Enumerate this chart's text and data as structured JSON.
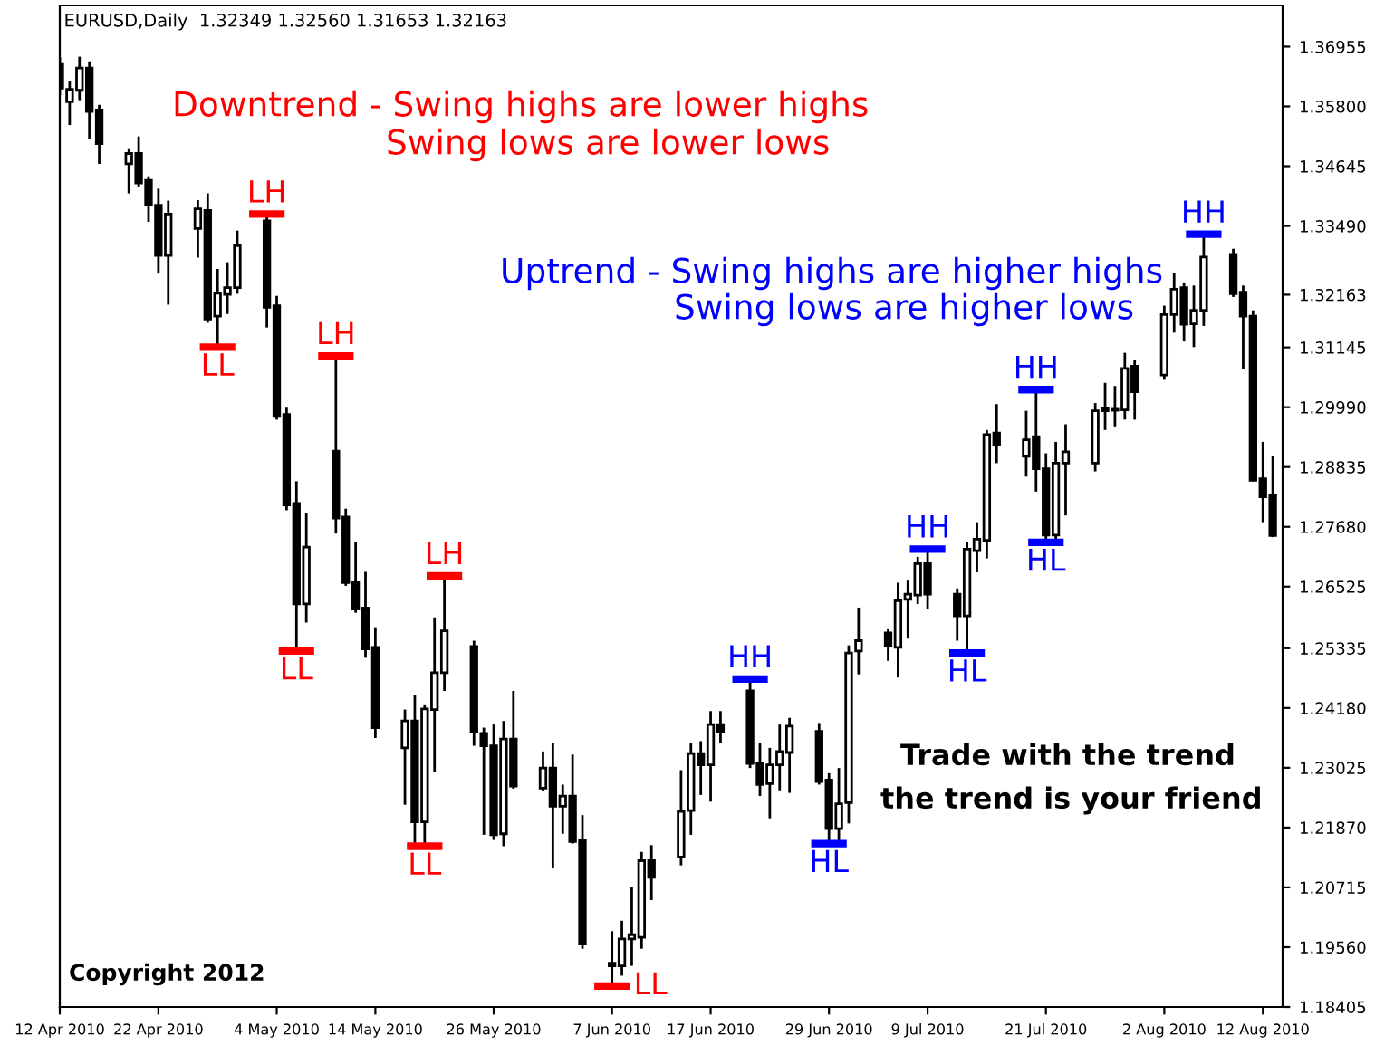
{
  "chart_data": {
    "type": "candlestick",
    "title": "EURUSD,Daily  1.32349 1.32560 1.31653 1.32163",
    "color": "#000000",
    "x": [
      "2010-04-12",
      "2010-04-13",
      "2010-04-14",
      "2010-04-15",
      "2010-04-16",
      "2010-04-19",
      "2010-04-20",
      "2010-04-21",
      "2010-04-22",
      "2010-04-23",
      "2010-04-26",
      "2010-04-27",
      "2010-04-28",
      "2010-04-29",
      "2010-04-30",
      "2010-05-03",
      "2010-05-04",
      "2010-05-05",
      "2010-05-06",
      "2010-05-07",
      "2010-05-10",
      "2010-05-11",
      "2010-05-12",
      "2010-05-13",
      "2010-05-14",
      "2010-05-17",
      "2010-05-18",
      "2010-05-19",
      "2010-05-20",
      "2010-05-21",
      "2010-05-24",
      "2010-05-25",
      "2010-05-26",
      "2010-05-27",
      "2010-05-28",
      "2010-05-31",
      "2010-06-01",
      "2010-06-02",
      "2010-06-03",
      "2010-06-04",
      "2010-06-07",
      "2010-06-08",
      "2010-06-09",
      "2010-06-10",
      "2010-06-11",
      "2010-06-14",
      "2010-06-15",
      "2010-06-16",
      "2010-06-17",
      "2010-06-18",
      "2010-06-21",
      "2010-06-22",
      "2010-06-23",
      "2010-06-24",
      "2010-06-25",
      "2010-06-28",
      "2010-06-29",
      "2010-06-30",
      "2010-07-01",
      "2010-07-02",
      "2010-07-05",
      "2010-07-06",
      "2010-07-07",
      "2010-07-08",
      "2010-07-09",
      "2010-07-12",
      "2010-07-13",
      "2010-07-14",
      "2010-07-15",
      "2010-07-16",
      "2010-07-19",
      "2010-07-20",
      "2010-07-21",
      "2010-07-22",
      "2010-07-23",
      "2010-07-26",
      "2010-07-27",
      "2010-07-28",
      "2010-07-29",
      "2010-07-30",
      "2010-08-02",
      "2010-08-03",
      "2010-08-04",
      "2010-08-05",
      "2010-08-06",
      "2010-08-09",
      "2010-08-10",
      "2010-08-11",
      "2010-08-12",
      "2010-08-13"
    ],
    "ohlc": [
      [
        1.3661,
        1.3674,
        1.3602,
        1.3615
      ],
      [
        1.3589,
        1.3628,
        1.3544,
        1.3613
      ],
      [
        1.3611,
        1.3676,
        1.3592,
        1.3654
      ],
      [
        1.3654,
        1.3667,
        1.3518,
        1.357
      ],
      [
        1.3573,
        1.3583,
        1.3469,
        1.3508
      ],
      [
        1.3469,
        1.3499,
        1.3412,
        1.3489
      ],
      [
        1.3489,
        1.3522,
        1.3425,
        1.3432
      ],
      [
        1.3437,
        1.3445,
        1.3357,
        1.3389
      ],
      [
        1.3389,
        1.3421,
        1.3257,
        1.3292
      ],
      [
        1.3292,
        1.3398,
        1.3197,
        1.3372
      ],
      [
        1.3344,
        1.3399,
        1.3288,
        1.3382
      ],
      [
        1.3379,
        1.3412,
        1.3162,
        1.3169
      ],
      [
        1.3175,
        1.3266,
        1.3115,
        1.3219
      ],
      [
        1.3217,
        1.3279,
        1.3179,
        1.323
      ],
      [
        1.323,
        1.334,
        1.3218,
        1.3311
      ],
      [
        1.3359,
        1.3372,
        1.3153,
        1.3192
      ],
      [
        1.3195,
        1.3214,
        1.2975,
        1.2981
      ],
      [
        1.2985,
        1.2998,
        1.28,
        1.281
      ],
      [
        1.2813,
        1.2856,
        1.2528,
        1.2619
      ],
      [
        1.2619,
        1.2794,
        1.2583,
        1.2729
      ],
      [
        1.2914,
        1.3098,
        1.2755,
        1.2785
      ],
      [
        1.2787,
        1.2803,
        1.2654,
        1.266
      ],
      [
        1.266,
        1.2738,
        1.2602,
        1.2609
      ],
      [
        1.2611,
        1.2681,
        1.2515,
        1.2532
      ],
      [
        1.2535,
        1.2574,
        1.236,
        1.238
      ],
      [
        1.2341,
        1.2415,
        1.2231,
        1.2393
      ],
      [
        1.2393,
        1.2444,
        1.2156,
        1.2198
      ],
      [
        1.2198,
        1.2425,
        1.2151,
        1.2416
      ],
      [
        1.2415,
        1.2593,
        1.2295,
        1.2486
      ],
      [
        1.2486,
        1.2673,
        1.2451,
        1.2567
      ],
      [
        1.2537,
        1.2548,
        1.2345,
        1.2371
      ],
      [
        1.2369,
        1.238,
        1.2173,
        1.2345
      ],
      [
        1.2345,
        1.2386,
        1.2163,
        1.2173
      ],
      [
        1.2175,
        1.2393,
        1.2151,
        1.2358
      ],
      [
        1.2358,
        1.2451,
        1.2262,
        1.2267
      ],
      [
        1.2263,
        1.2334,
        1.2257,
        1.2302
      ],
      [
        1.2302,
        1.2351,
        1.2108,
        1.2228
      ],
      [
        1.2228,
        1.227,
        1.2175,
        1.2248
      ],
      [
        1.2248,
        1.2328,
        1.2156,
        1.216
      ],
      [
        1.2162,
        1.2211,
        1.1953,
        1.1962
      ],
      [
        1.1925,
        1.1987,
        1.1881,
        1.192
      ],
      [
        1.192,
        1.2007,
        1.1901,
        1.1972
      ],
      [
        1.1972,
        1.2073,
        1.192,
        1.198
      ],
      [
        1.1975,
        1.214,
        1.1953,
        1.2123
      ],
      [
        1.2123,
        1.2153,
        1.2047,
        1.2091
      ],
      [
        1.213,
        1.2298,
        1.2114,
        1.2218
      ],
      [
        1.222,
        1.235,
        1.2173,
        1.233
      ],
      [
        1.233,
        1.2354,
        1.225,
        1.2308
      ],
      [
        1.2308,
        1.2412,
        1.2237,
        1.2386
      ],
      [
        1.2386,
        1.2412,
        1.235,
        1.2373
      ],
      [
        1.2451,
        1.2474,
        1.2302,
        1.2311
      ],
      [
        1.2311,
        1.235,
        1.2248,
        1.227
      ],
      [
        1.2272,
        1.2341,
        1.2205,
        1.2308
      ],
      [
        1.2308,
        1.2386,
        1.2259,
        1.2334
      ],
      [
        1.2332,
        1.2399,
        1.2254,
        1.2383
      ],
      [
        1.2373,
        1.2389,
        1.227,
        1.2276
      ],
      [
        1.2279,
        1.2292,
        1.2156,
        1.2185
      ],
      [
        1.2185,
        1.2302,
        1.216,
        1.2233
      ],
      [
        1.2235,
        1.2539,
        1.2195,
        1.2524
      ],
      [
        1.2528,
        1.2612,
        1.2483,
        1.2548
      ],
      [
        1.2563,
        1.257,
        1.2509,
        1.2539
      ],
      [
        1.2535,
        1.266,
        1.2477,
        1.2625
      ],
      [
        1.2628,
        1.2664,
        1.2552,
        1.2638
      ],
      [
        1.2636,
        1.271,
        1.2619,
        1.2697
      ],
      [
        1.2697,
        1.2725,
        1.2609,
        1.2638
      ],
      [
        1.2638,
        1.2649,
        1.2548,
        1.2596
      ],
      [
        1.2596,
        1.2738,
        1.2524,
        1.2725
      ],
      [
        1.2722,
        1.2777,
        1.268,
        1.2744
      ],
      [
        1.2742,
        1.2955,
        1.2707,
        1.2946
      ],
      [
        1.2949,
        1.3005,
        1.2891,
        1.2926
      ],
      [
        1.2904,
        1.2992,
        1.2865,
        1.2936
      ],
      [
        1.2942,
        1.3033,
        1.2836,
        1.288
      ],
      [
        1.288,
        1.291,
        1.2738,
        1.2752
      ],
      [
        1.2752,
        1.2932,
        1.2735,
        1.2891
      ],
      [
        1.2891,
        1.2966,
        1.279,
        1.2913
      ],
      [
        1.2891,
        1.3007,
        1.2875,
        1.2992
      ],
      [
        1.2992,
        1.3046,
        1.2955,
        1.2997
      ],
      [
        1.2993,
        1.304,
        1.2962,
        1.2995
      ],
      [
        1.2994,
        1.3104,
        1.2975,
        1.3074
      ],
      [
        1.3078,
        1.3091,
        1.2975,
        1.3029
      ],
      [
        1.3061,
        1.3195,
        1.3052,
        1.3178
      ],
      [
        1.3178,
        1.3259,
        1.3143,
        1.3227
      ],
      [
        1.323,
        1.324,
        1.3126,
        1.3159
      ],
      [
        1.316,
        1.3234,
        1.3115,
        1.3186
      ],
      [
        1.3186,
        1.3333,
        1.3156,
        1.3289
      ],
      [
        1.3294,
        1.3305,
        1.3212,
        1.3218
      ],
      [
        1.3221,
        1.3234,
        1.3072,
        1.3175
      ],
      [
        1.3175,
        1.3186,
        1.2856,
        1.2858
      ],
      [
        1.2861,
        1.2932,
        1.2777,
        1.2826
      ],
      [
        1.2829,
        1.2904,
        1.2748,
        1.2751
      ]
    ],
    "xlim": [
      "2010-04-12",
      "2010-08-14"
    ],
    "xticks": [
      {
        "value": "2010-04-12",
        "label": "12 Apr 2010"
      },
      {
        "value": "2010-04-22",
        "label": "22 Apr 2010"
      },
      {
        "value": "2010-05-04",
        "label": "4 May 2010"
      },
      {
        "value": "2010-05-14",
        "label": "14 May 2010"
      },
      {
        "value": "2010-05-26",
        "label": "26 May 2010"
      },
      {
        "value": "2010-06-07",
        "label": "7 Jun 2010"
      },
      {
        "value": "2010-06-17",
        "label": "17 Jun 2010"
      },
      {
        "value": "2010-06-29",
        "label": "29 Jun 2010"
      },
      {
        "value": "2010-07-09",
        "label": "9 Jul 2010"
      },
      {
        "value": "2010-07-21",
        "label": "21 Jul 2010"
      },
      {
        "value": "2010-08-02",
        "label": "2 Aug 2010"
      },
      {
        "value": "2010-08-12",
        "label": "12 Aug 2010"
      }
    ],
    "ylim": [
      1.18405,
      1.3775
    ],
    "yticks": [
      {
        "value": 1.36955,
        "label": "1.36955"
      },
      {
        "value": 1.358,
        "label": "1.35800"
      },
      {
        "value": 1.34645,
        "label": "1.34645"
      },
      {
        "value": 1.3349,
        "label": "1.33490"
      },
      1.32163,
      {
        "value": 1.31145,
        "label": "1.31145"
      },
      {
        "value": 1.2999,
        "label": "1.29990"
      },
      {
        "value": 1.28835,
        "label": "1.28835"
      },
      {
        "value": 1.2768,
        "label": "1.27680"
      },
      {
        "value": 1.26525,
        "label": "1.26525"
      },
      {
        "value": 1.25335,
        "label": "1.25335"
      },
      {
        "value": 1.2418,
        "label": "1.24180"
      },
      {
        "value": 1.23025,
        "label": "1.23025"
      },
      {
        "value": 1.2187,
        "label": "1.21870"
      },
      {
        "value": 1.20715,
        "label": "1.20715"
      },
      {
        "value": 1.1956,
        "label": "1.19560"
      },
      {
        "value": 1.18405,
        "label": "1.18405"
      }
    ],
    "grid": false,
    "legend": false,
    "annotations": [
      "Downtrend - Swing highs are lower highs",
      "Swing lows are lower lows",
      "Uptrend - Swing highs are higher highs",
      "Swing lows are higher lows",
      "Trade with the trend",
      "the trend is your friend",
      "Copyright 2012",
      {
        "text": "LL",
        "x": "2010-04-28",
        "y": 1.3115
      },
      {
        "text": "LH",
        "x": "2010-05-03",
        "y": 1.3372
      },
      {
        "text": "LL",
        "x": "2010-05-06",
        "y": 1.2528
      },
      {
        "text": "LH",
        "x": "2010-05-10",
        "y": 1.3098
      },
      {
        "text": "LL",
        "x": "2010-05-19",
        "y": 1.2151
      },
      {
        "text": "LH",
        "x": "2010-05-21",
        "y": 1.2673
      },
      {
        "text": "LL",
        "x": "2010-06-07",
        "y": 1.1881
      },
      {
        "text": "HH",
        "x": "2010-06-21",
        "y": 1.2474
      },
      {
        "text": "HL",
        "x": "2010-06-29",
        "y": 1.2156
      },
      {
        "text": "HH",
        "x": "2010-07-09",
        "y": 1.2725
      },
      {
        "text": "HL",
        "x": "2010-07-13",
        "y": 1.2524
      },
      {
        "text": "HH",
        "x": "2010-07-20",
        "y": 1.3033
      },
      {
        "text": "HL",
        "x": "2010-07-21",
        "y": 1.2738
      },
      {
        "text": "HH",
        "x": "2010-08-06",
        "y": 1.3333
      }
    ]
  }
}
